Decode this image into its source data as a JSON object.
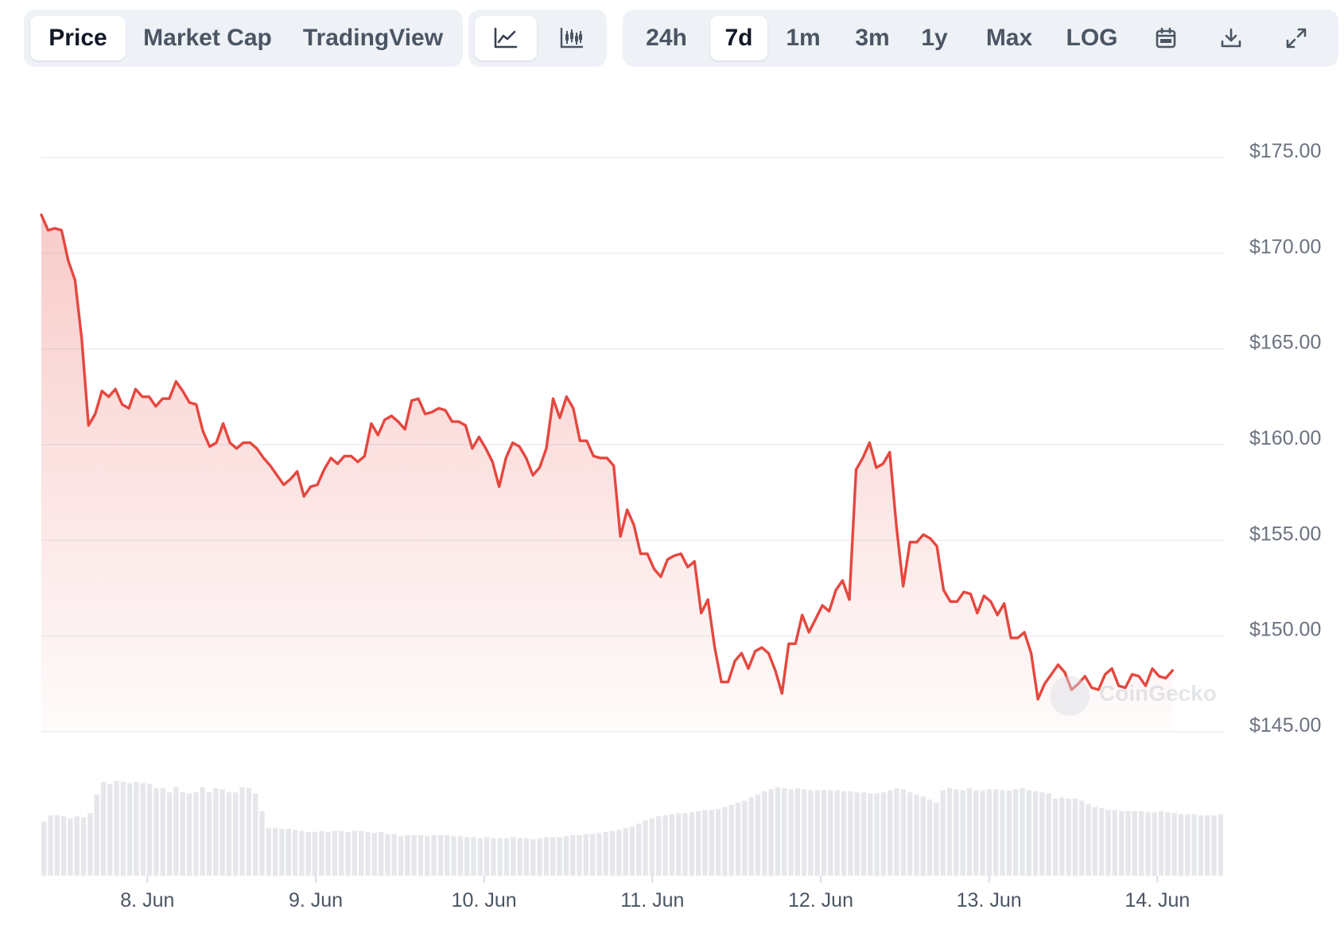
{
  "tabs": {
    "price": "Price",
    "market_cap": "Market Cap",
    "tradingview": "TradingView"
  },
  "chart_type_buttons": {
    "line_icon": "line-chart-icon",
    "candle_icon": "candlestick-icon"
  },
  "ranges": {
    "h24": "24h",
    "d7": "7d",
    "m1": "1m",
    "m3": "3m",
    "y1": "1y",
    "max": "Max",
    "log": "LOG"
  },
  "tools": {
    "calendar_icon": "calendar-icon",
    "download_icon": "download-icon",
    "expand_icon": "expand-icon"
  },
  "watermark": "CoinGecko",
  "colors": {
    "line": "#e5473f",
    "volume": "#e5e7eb",
    "grid": "#eceff3"
  },
  "chart_data": {
    "type": "area",
    "xlabel": "",
    "ylabel": "",
    "ylim": [
      145,
      175
    ],
    "y_ticks": [
      "$175.00",
      "$170.00",
      "$165.00",
      "$160.00",
      "$155.00",
      "$150.00",
      "$145.00"
    ],
    "y_tick_values": [
      175,
      170,
      165,
      160,
      155,
      150,
      145
    ],
    "x_ticks": [
      "8. Jun",
      "9. Jun",
      "10. Jun",
      "11. Jun",
      "12. Jun",
      "13. Jun",
      "14. Jun"
    ],
    "x_tick_values": [
      0.83,
      1.83,
      2.83,
      3.83,
      4.83,
      5.83,
      6.83
    ],
    "x_range": [
      0.2,
      7.23
    ],
    "price": [
      [
        0.2,
        172.0
      ],
      [
        0.24,
        171.2
      ],
      [
        0.28,
        171.3
      ],
      [
        0.32,
        171.2
      ],
      [
        0.36,
        169.6
      ],
      [
        0.4,
        168.6
      ],
      [
        0.44,
        165.5
      ],
      [
        0.48,
        161.0
      ],
      [
        0.52,
        161.6
      ],
      [
        0.56,
        162.8
      ],
      [
        0.6,
        162.5
      ],
      [
        0.64,
        162.9
      ],
      [
        0.68,
        162.1
      ],
      [
        0.72,
        161.9
      ],
      [
        0.76,
        162.9
      ],
      [
        0.8,
        162.5
      ],
      [
        0.84,
        162.5
      ],
      [
        0.88,
        162.0
      ],
      [
        0.92,
        162.4
      ],
      [
        0.96,
        162.4
      ],
      [
        1.0,
        163.3
      ],
      [
        1.04,
        162.8
      ],
      [
        1.08,
        162.2
      ],
      [
        1.12,
        162.1
      ],
      [
        1.16,
        160.7
      ],
      [
        1.2,
        159.9
      ],
      [
        1.24,
        160.1
      ],
      [
        1.28,
        161.1
      ],
      [
        1.32,
        160.1
      ],
      [
        1.36,
        159.8
      ],
      [
        1.4,
        160.1
      ],
      [
        1.44,
        160.1
      ],
      [
        1.48,
        159.8
      ],
      [
        1.52,
        159.3
      ],
      [
        1.56,
        158.9
      ],
      [
        1.6,
        158.4
      ],
      [
        1.64,
        157.9
      ],
      [
        1.68,
        158.2
      ],
      [
        1.72,
        158.6
      ],
      [
        1.76,
        157.3
      ],
      [
        1.8,
        157.8
      ],
      [
        1.84,
        157.9
      ],
      [
        1.88,
        158.7
      ],
      [
        1.92,
        159.3
      ],
      [
        1.96,
        159.0
      ],
      [
        2.0,
        159.4
      ],
      [
        2.04,
        159.4
      ],
      [
        2.08,
        159.1
      ],
      [
        2.12,
        159.4
      ],
      [
        2.16,
        161.1
      ],
      [
        2.2,
        160.5
      ],
      [
        2.24,
        161.3
      ],
      [
        2.28,
        161.5
      ],
      [
        2.32,
        161.2
      ],
      [
        2.36,
        160.8
      ],
      [
        2.4,
        162.3
      ],
      [
        2.44,
        162.4
      ],
      [
        2.48,
        161.6
      ],
      [
        2.52,
        161.7
      ],
      [
        2.56,
        161.9
      ],
      [
        2.6,
        161.8
      ],
      [
        2.64,
        161.2
      ],
      [
        2.68,
        161.2
      ],
      [
        2.72,
        161.0
      ],
      [
        2.76,
        159.8
      ],
      [
        2.8,
        160.4
      ],
      [
        2.84,
        159.8
      ],
      [
        2.88,
        159.1
      ],
      [
        2.92,
        157.8
      ],
      [
        2.96,
        159.3
      ],
      [
        3.0,
        160.1
      ],
      [
        3.04,
        159.9
      ],
      [
        3.08,
        159.3
      ],
      [
        3.12,
        158.4
      ],
      [
        3.16,
        158.8
      ],
      [
        3.2,
        159.8
      ],
      [
        3.24,
        162.4
      ],
      [
        3.28,
        161.4
      ],
      [
        3.32,
        162.5
      ],
      [
        3.36,
        161.9
      ],
      [
        3.4,
        160.2
      ],
      [
        3.44,
        160.2
      ],
      [
        3.48,
        159.4
      ],
      [
        3.52,
        159.3
      ],
      [
        3.56,
        159.3
      ],
      [
        3.6,
        158.9
      ],
      [
        3.64,
        155.2
      ],
      [
        3.68,
        156.6
      ],
      [
        3.72,
        155.8
      ],
      [
        3.76,
        154.3
      ],
      [
        3.8,
        154.3
      ],
      [
        3.84,
        153.5
      ],
      [
        3.88,
        153.1
      ],
      [
        3.92,
        154.0
      ],
      [
        3.96,
        154.2
      ],
      [
        4.0,
        154.3
      ],
      [
        4.04,
        153.6
      ],
      [
        4.08,
        153.9
      ],
      [
        4.12,
        151.2
      ],
      [
        4.16,
        151.9
      ],
      [
        4.2,
        149.4
      ],
      [
        4.24,
        147.6
      ],
      [
        4.28,
        147.6
      ],
      [
        4.32,
        148.7
      ],
      [
        4.36,
        149.1
      ],
      [
        4.4,
        148.3
      ],
      [
        4.44,
        149.2
      ],
      [
        4.48,
        149.4
      ],
      [
        4.52,
        149.1
      ],
      [
        4.56,
        148.2
      ],
      [
        4.6,
        147.0
      ],
      [
        4.64,
        149.6
      ],
      [
        4.68,
        149.6
      ],
      [
        4.72,
        151.1
      ],
      [
        4.76,
        150.2
      ],
      [
        4.8,
        150.9
      ],
      [
        4.84,
        151.6
      ],
      [
        4.88,
        151.3
      ],
      [
        4.92,
        152.4
      ],
      [
        4.96,
        152.9
      ],
      [
        5.0,
        151.9
      ],
      [
        5.04,
        158.7
      ],
      [
        5.08,
        159.3
      ],
      [
        5.12,
        160.1
      ],
      [
        5.16,
        158.8
      ],
      [
        5.2,
        159.0
      ],
      [
        5.24,
        159.6
      ],
      [
        5.28,
        155.7
      ],
      [
        5.32,
        152.6
      ],
      [
        5.36,
        154.9
      ],
      [
        5.4,
        154.9
      ],
      [
        5.44,
        155.3
      ],
      [
        5.48,
        155.1
      ],
      [
        5.52,
        154.7
      ],
      [
        5.56,
        152.4
      ],
      [
        5.6,
        151.8
      ],
      [
        5.64,
        151.8
      ],
      [
        5.68,
        152.3
      ],
      [
        5.72,
        152.2
      ],
      [
        5.76,
        151.2
      ],
      [
        5.8,
        152.1
      ],
      [
        5.84,
        151.8
      ],
      [
        5.88,
        151.1
      ],
      [
        5.92,
        151.7
      ],
      [
        5.96,
        149.9
      ],
      [
        6.0,
        149.9
      ],
      [
        6.04,
        150.2
      ],
      [
        6.08,
        149.1
      ],
      [
        6.12,
        146.7
      ],
      [
        6.16,
        147.5
      ],
      [
        6.2,
        148.0
      ],
      [
        6.24,
        148.5
      ],
      [
        6.28,
        148.1
      ],
      [
        6.32,
        147.2
      ],
      [
        6.36,
        147.5
      ],
      [
        6.4,
        147.9
      ],
      [
        6.44,
        147.3
      ],
      [
        6.48,
        147.2
      ],
      [
        6.52,
        148.0
      ],
      [
        6.56,
        148.3
      ],
      [
        6.6,
        147.4
      ],
      [
        6.64,
        147.3
      ],
      [
        6.68,
        148.0
      ],
      [
        6.72,
        147.9
      ],
      [
        6.76,
        147.4
      ],
      [
        6.8,
        148.3
      ],
      [
        6.84,
        147.9
      ],
      [
        6.88,
        147.8
      ],
      [
        6.92,
        148.2
      ]
    ],
    "volume_relative": [
      0.52,
      0.58,
      0.58,
      0.57,
      0.55,
      0.57,
      0.56,
      0.6,
      0.78,
      0.9,
      0.88,
      0.91,
      0.9,
      0.89,
      0.9,
      0.89,
      0.88,
      0.84,
      0.84,
      0.8,
      0.85,
      0.8,
      0.79,
      0.8,
      0.85,
      0.8,
      0.84,
      0.83,
      0.8,
      0.8,
      0.85,
      0.84,
      0.79,
      0.62,
      0.46,
      0.46,
      0.45,
      0.45,
      0.44,
      0.43,
      0.42,
      0.42,
      0.43,
      0.42,
      0.43,
      0.43,
      0.42,
      0.43,
      0.43,
      0.42,
      0.41,
      0.42,
      0.4,
      0.4,
      0.38,
      0.39,
      0.39,
      0.39,
      0.38,
      0.39,
      0.39,
      0.39,
      0.38,
      0.38,
      0.37,
      0.37,
      0.36,
      0.37,
      0.36,
      0.36,
      0.36,
      0.37,
      0.36,
      0.36,
      0.35,
      0.36,
      0.37,
      0.37,
      0.37,
      0.38,
      0.39,
      0.39,
      0.4,
      0.4,
      0.41,
      0.42,
      0.43,
      0.44,
      0.46,
      0.47,
      0.5,
      0.53,
      0.55,
      0.57,
      0.58,
      0.59,
      0.6,
      0.6,
      0.61,
      0.62,
      0.63,
      0.63,
      0.64,
      0.66,
      0.68,
      0.7,
      0.72,
      0.75,
      0.78,
      0.81,
      0.83,
      0.85,
      0.84,
      0.83,
      0.84,
      0.83,
      0.82,
      0.82,
      0.82,
      0.82,
      0.82,
      0.81,
      0.81,
      0.8,
      0.8,
      0.79,
      0.79,
      0.8,
      0.82,
      0.84,
      0.83,
      0.8,
      0.78,
      0.76,
      0.73,
      0.7,
      0.82,
      0.84,
      0.83,
      0.82,
      0.84,
      0.82,
      0.82,
      0.83,
      0.83,
      0.82,
      0.82,
      0.83,
      0.84,
      0.82,
      0.81,
      0.8,
      0.79,
      0.74,
      0.75,
      0.74,
      0.74,
      0.72,
      0.69,
      0.66,
      0.65,
      0.63,
      0.63,
      0.62,
      0.62,
      0.62,
      0.62,
      0.61,
      0.61,
      0.62,
      0.61,
      0.6,
      0.59,
      0.59,
      0.59,
      0.58,
      0.58,
      0.58,
      0.59
    ]
  }
}
